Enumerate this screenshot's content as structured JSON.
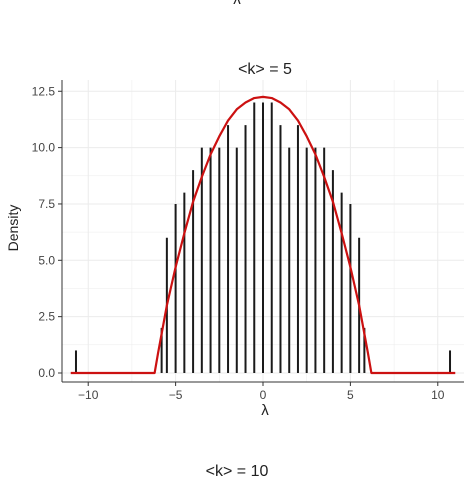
{
  "fragments": {
    "top_axis_label": "λ",
    "bottom_title": "<k> = 10"
  },
  "chart_data": {
    "type": "bar",
    "title": "<k> = 5",
    "xlabel": "λ",
    "ylabel": "Density",
    "xlim": [
      -11.5,
      11.5
    ],
    "ylim": [
      -0.4,
      13.0
    ],
    "xticks": [
      -10,
      -5,
      0,
      5,
      10
    ],
    "yticks": [
      0.0,
      2.5,
      5.0,
      7.5,
      10.0,
      12.5
    ],
    "ytick_labels": [
      "0.0",
      "2.5",
      "5.0",
      "7.5",
      "10.0",
      "12.5"
    ],
    "grid": true,
    "legend": "none",
    "colors": {
      "spikes": "#1a1a1a",
      "curve": "#cc1111",
      "grid": "#ebebeb",
      "axis": "#333333"
    },
    "series": [
      {
        "type": "bar",
        "x": [
          -10.7,
          -5.8,
          -5.5,
          -5.0,
          -4.5,
          -4.0,
          -3.5,
          -3.0,
          -2.5,
          -2.0,
          -1.5,
          -1.0,
          -0.5,
          0.0,
          0.5,
          1.0,
          1.5,
          2.0,
          2.5,
          3.0,
          3.5,
          4.0,
          4.5,
          5.0,
          5.5,
          5.8,
          10.7
        ],
        "values": [
          1.0,
          2.0,
          6.0,
          7.5,
          8.0,
          9.0,
          10.0,
          10.0,
          10.0,
          11.0,
          10.0,
          11.0,
          12.0,
          12.0,
          12.0,
          11.0,
          10.0,
          11.0,
          10.0,
          10.0,
          10.0,
          9.0,
          8.0,
          7.5,
          6.0,
          2.0,
          1.0
        ]
      },
      {
        "type": "line",
        "x": [
          -11.0,
          -6.2,
          -6.0,
          -5.5,
          -5.0,
          -4.5,
          -4.0,
          -3.5,
          -3.0,
          -2.5,
          -2.0,
          -1.5,
          -1.0,
          -0.5,
          0.0,
          0.5,
          1.0,
          1.5,
          2.0,
          2.5,
          3.0,
          3.5,
          4.0,
          4.5,
          5.0,
          5.5,
          6.0,
          6.2,
          11.0
        ],
        "y": [
          0.0,
          0.0,
          0.9,
          3.0,
          4.7,
          6.2,
          7.6,
          8.7,
          9.7,
          10.5,
          11.2,
          11.7,
          12.0,
          12.2,
          12.25,
          12.2,
          12.0,
          11.7,
          11.2,
          10.5,
          9.7,
          8.7,
          7.6,
          6.2,
          4.7,
          3.0,
          0.9,
          0.0,
          0.0
        ]
      }
    ]
  }
}
